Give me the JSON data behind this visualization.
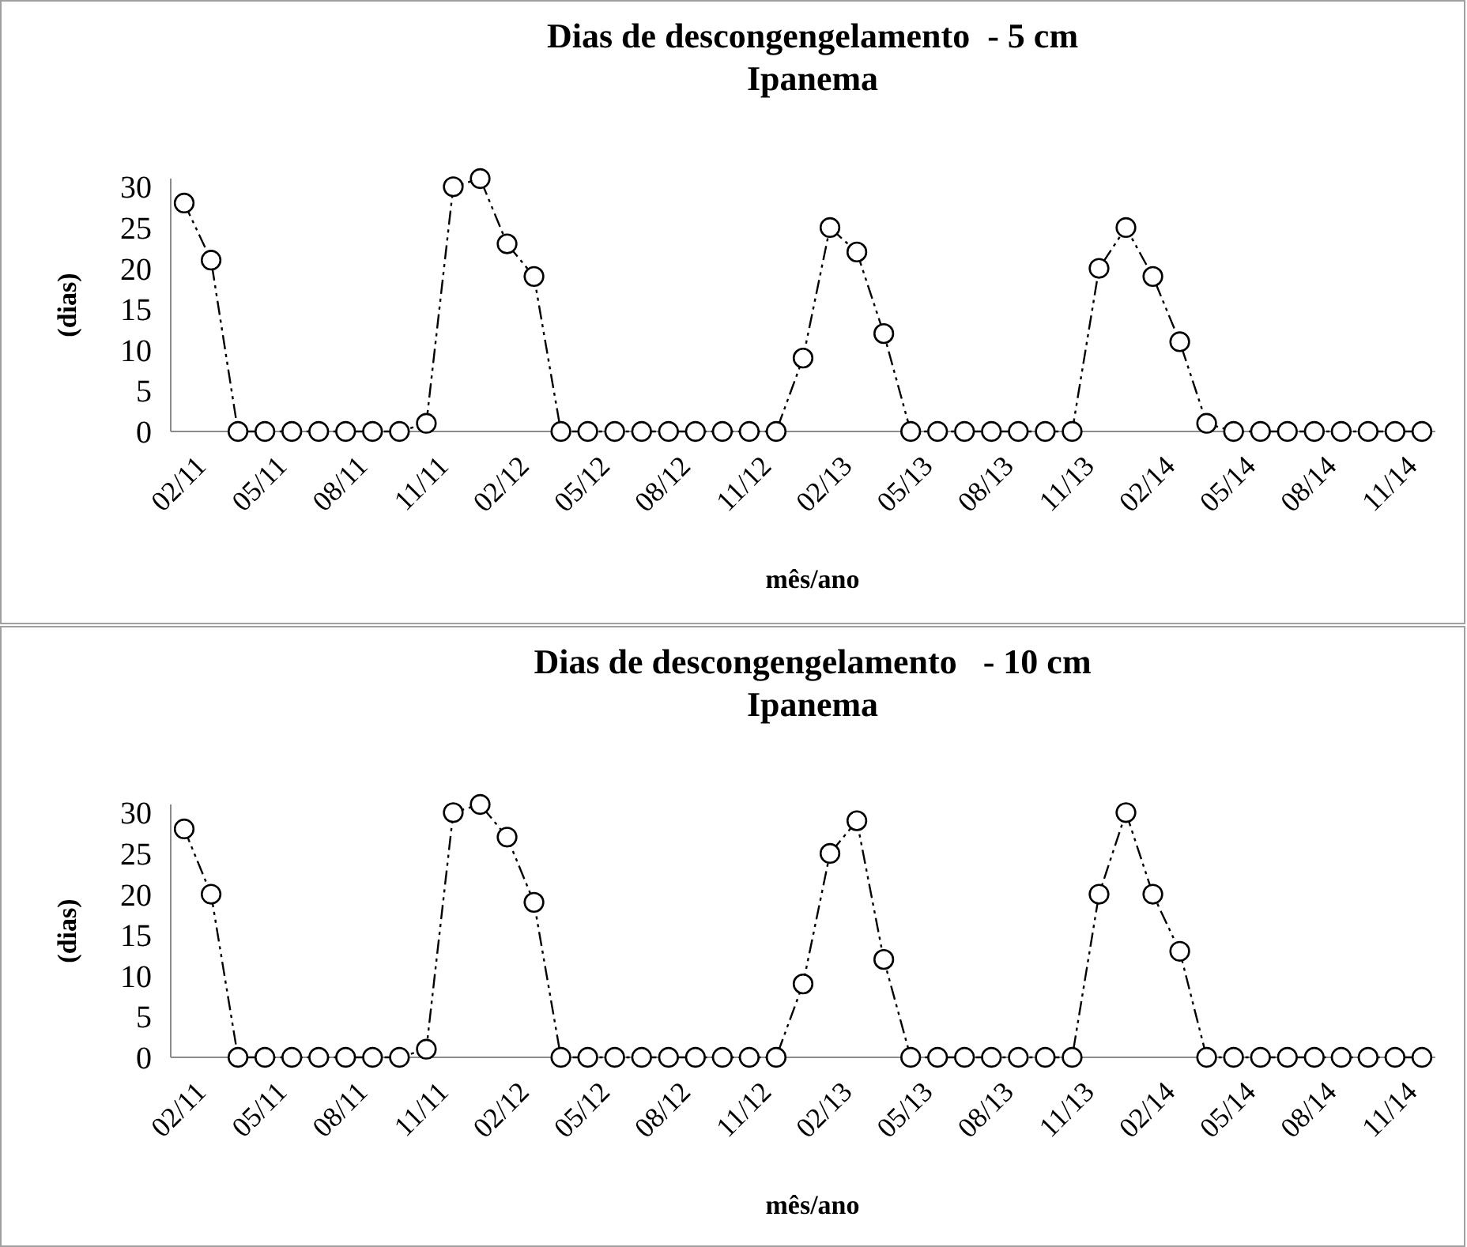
{
  "chart_data": [
    {
      "type": "line",
      "title": "Dias de descongengelamento  - 5 cm",
      "subtitle": "Ipanema",
      "xlabel": "mês/ano",
      "ylabel": "(dias)",
      "categories": [
        "02/11",
        null,
        null,
        "05/11",
        null,
        null,
        "08/11",
        null,
        null,
        "11/11",
        null,
        null,
        "02/12",
        null,
        null,
        "05/12",
        null,
        null,
        "08/12",
        null,
        null,
        "11/12",
        null,
        null,
        "02/13",
        null,
        null,
        "05/13",
        null,
        null,
        "08/13",
        null,
        null,
        "11/13",
        null,
        null,
        "02/14",
        null,
        null,
        "05/14",
        null,
        null,
        "08/14",
        null,
        null,
        "11/14",
        null
      ],
      "series": [
        {
          "color": "#000000",
          "values": [
            28,
            21,
            0,
            0,
            0,
            0,
            0,
            0,
            0,
            1,
            30,
            31,
            23,
            19,
            0,
            0,
            0,
            0,
            0,
            0,
            0,
            0,
            0,
            9,
            25,
            22,
            12,
            0,
            0,
            0,
            0,
            0,
            0,
            0,
            20,
            25,
            19,
            11,
            1,
            0,
            0,
            0,
            0,
            0,
            0,
            0,
            0
          ]
        }
      ],
      "ylim": [
        0,
        31
      ],
      "yticks": [
        0,
        5,
        10,
        15,
        20,
        25,
        30
      ],
      "grid": false,
      "marker": "circle",
      "line_style": "dashed"
    },
    {
      "type": "line",
      "title": "Dias de descongengelamento   - 10 cm",
      "subtitle": "Ipanema",
      "xlabel": "mês/ano",
      "ylabel": "(dias)",
      "categories": [
        "02/11",
        null,
        null,
        "05/11",
        null,
        null,
        "08/11",
        null,
        null,
        "11/11",
        null,
        null,
        "02/12",
        null,
        null,
        "05/12",
        null,
        null,
        "08/12",
        null,
        null,
        "11/12",
        null,
        null,
        "02/13",
        null,
        null,
        "05/13",
        null,
        null,
        "08/13",
        null,
        null,
        "11/13",
        null,
        null,
        "02/14",
        null,
        null,
        "05/14",
        null,
        null,
        "08/14",
        null,
        null,
        "11/14",
        null
      ],
      "series": [
        {
          "color": "#000000",
          "values": [
            28,
            20,
            0,
            0,
            0,
            0,
            0,
            0,
            0,
            1,
            30,
            31,
            27,
            19,
            0,
            0,
            0,
            0,
            0,
            0,
            0,
            0,
            0,
            9,
            25,
            29,
            12,
            0,
            0,
            0,
            0,
            0,
            0,
            0,
            20,
            30,
            20,
            13,
            0,
            0,
            0,
            0,
            0,
            0,
            0,
            0,
            0
          ]
        }
      ],
      "ylim": [
        0,
        31
      ],
      "yticks": [
        0,
        5,
        10,
        15,
        20,
        25,
        30
      ],
      "grid": false,
      "marker": "circle",
      "line_style": "dashed"
    }
  ]
}
